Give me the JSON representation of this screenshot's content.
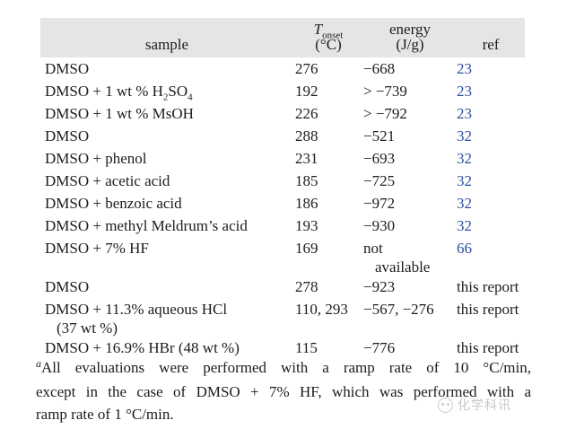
{
  "table": {
    "headers": {
      "sample": "sample",
      "t_symbol": "T",
      "t_sub": "onset",
      "t_unit": "(°C)",
      "energy": "energy",
      "energy_unit": "(J/g)",
      "ref": "ref"
    },
    "rows": [
      {
        "sample": "DMSO",
        "onset": "276",
        "energy": "−668",
        "ref": "23"
      },
      {
        "sample": "DMSO + 1 wt % H",
        "sample_sub1": "2",
        "sample_mid": "SO",
        "sample_sub2": "4",
        "onset": "192",
        "energy": "> −739",
        "ref": "23"
      },
      {
        "sample": "DMSO + 1 wt % MsOH",
        "onset": "226",
        "energy": "> −792",
        "ref": "23"
      },
      {
        "sample": "DMSO",
        "onset": "288",
        "energy": "−521",
        "ref": "32"
      },
      {
        "sample": "DMSO + phenol",
        "onset": "231",
        "energy": "−693",
        "ref": "32"
      },
      {
        "sample": "DMSO + acetic acid",
        "onset": "185",
        "energy": "−725",
        "ref": "32"
      },
      {
        "sample": "DMSO + benzoic acid",
        "onset": "186",
        "energy": "−972",
        "ref": "32"
      },
      {
        "sample": "DMSO + methyl Meldrum’s acid",
        "onset": "193",
        "energy": "−930",
        "ref": "32"
      },
      {
        "sample": "DMSO + 7% HF",
        "onset": "169",
        "energy": "not",
        "energy_line2": "available",
        "ref": "66"
      },
      {
        "sample": "DMSO",
        "onset": "278",
        "energy": "−923",
        "ref": "this report"
      },
      {
        "sample": "DMSO + 11.3% aqueous HCl",
        "sample_line2": "(37 wt %)",
        "onset": "110, 293",
        "energy": "−567, −276",
        "ref": "this report"
      },
      {
        "sample": "DMSO + 16.9% HBr (48 wt %)",
        "onset": "115",
        "energy": "−776",
        "ref": "this report"
      }
    ]
  },
  "footnote": {
    "marker": "a",
    "lines": [
      "All evaluations were performed with a ramp rate of 10 °C/min,",
      "except in the case of DMSO + 7% HF, which was performed with a",
      "ramp rate of 1 °C/min."
    ]
  },
  "watermark": {
    "text": "化学科讯"
  },
  "colors": {
    "header_background": "#e5e5e5",
    "body_text": "#1c1c1c",
    "reference_link_blue": "#2d4f9e",
    "watermark_gray": "#c8c8c8"
  }
}
